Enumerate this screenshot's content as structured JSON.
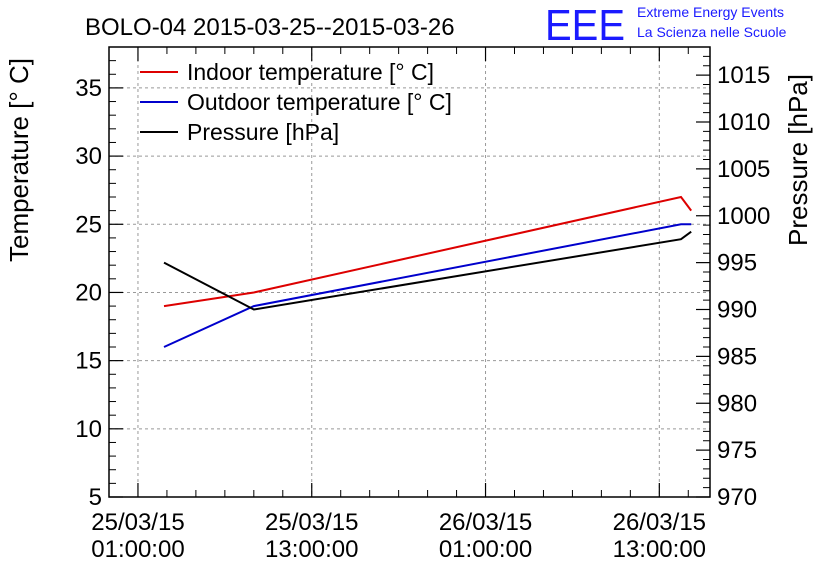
{
  "chart_data": {
    "type": "line",
    "title": "BOLO-04 2015-03-25--2015-03-26",
    "logo": {
      "text": "EEE",
      "line1": "Extreme Energy Events",
      "line2": "La Scienza nelle Scuole",
      "color": "#1a1aff"
    },
    "ylabel": "Temperature [° C]",
    "y2label": "Pressure [hPa]",
    "x_ticks": [
      {
        "hours": 0,
        "line1": "25/03/15",
        "line2": "01:00:00"
      },
      {
        "hours": 12,
        "line1": "25/03/15",
        "line2": "13:00:00"
      },
      {
        "hours": 24,
        "line1": "26/03/15",
        "line2": "01:00:00"
      },
      {
        "hours": 36,
        "line1": "26/03/15",
        "line2": "13:00:00"
      }
    ],
    "xlim_hours": [
      -2,
      39.5
    ],
    "ylim": [
      5,
      38
    ],
    "y_ticks": [
      5,
      10,
      15,
      20,
      25,
      30,
      35
    ],
    "y2lim": [
      970,
      1018
    ],
    "y2_ticks": [
      970,
      975,
      980,
      985,
      990,
      995,
      1000,
      1005,
      1010,
      1015
    ],
    "grid": true,
    "legend_position": "top-left",
    "series": [
      {
        "name": "Indoor temperature [° C]",
        "axis": "left",
        "color": "#dd0000",
        "points": [
          [
            1.8,
            19.0
          ],
          [
            8.0,
            20.0
          ],
          [
            37.5,
            27.0
          ],
          [
            38.2,
            26.0
          ]
        ]
      },
      {
        "name": "Outdoor temperature [° C]",
        "axis": "left",
        "color": "#0000cc",
        "points": [
          [
            1.8,
            16.0
          ],
          [
            8.0,
            19.0
          ],
          [
            37.5,
            25.0
          ],
          [
            38.2,
            25.0
          ]
        ]
      },
      {
        "name": "Pressure [hPa]",
        "axis": "right",
        "color": "#000000",
        "points": [
          [
            1.8,
            995.0
          ],
          [
            8.0,
            990.0
          ],
          [
            37.5,
            997.5
          ],
          [
            38.2,
            998.3
          ]
        ]
      }
    ]
  }
}
